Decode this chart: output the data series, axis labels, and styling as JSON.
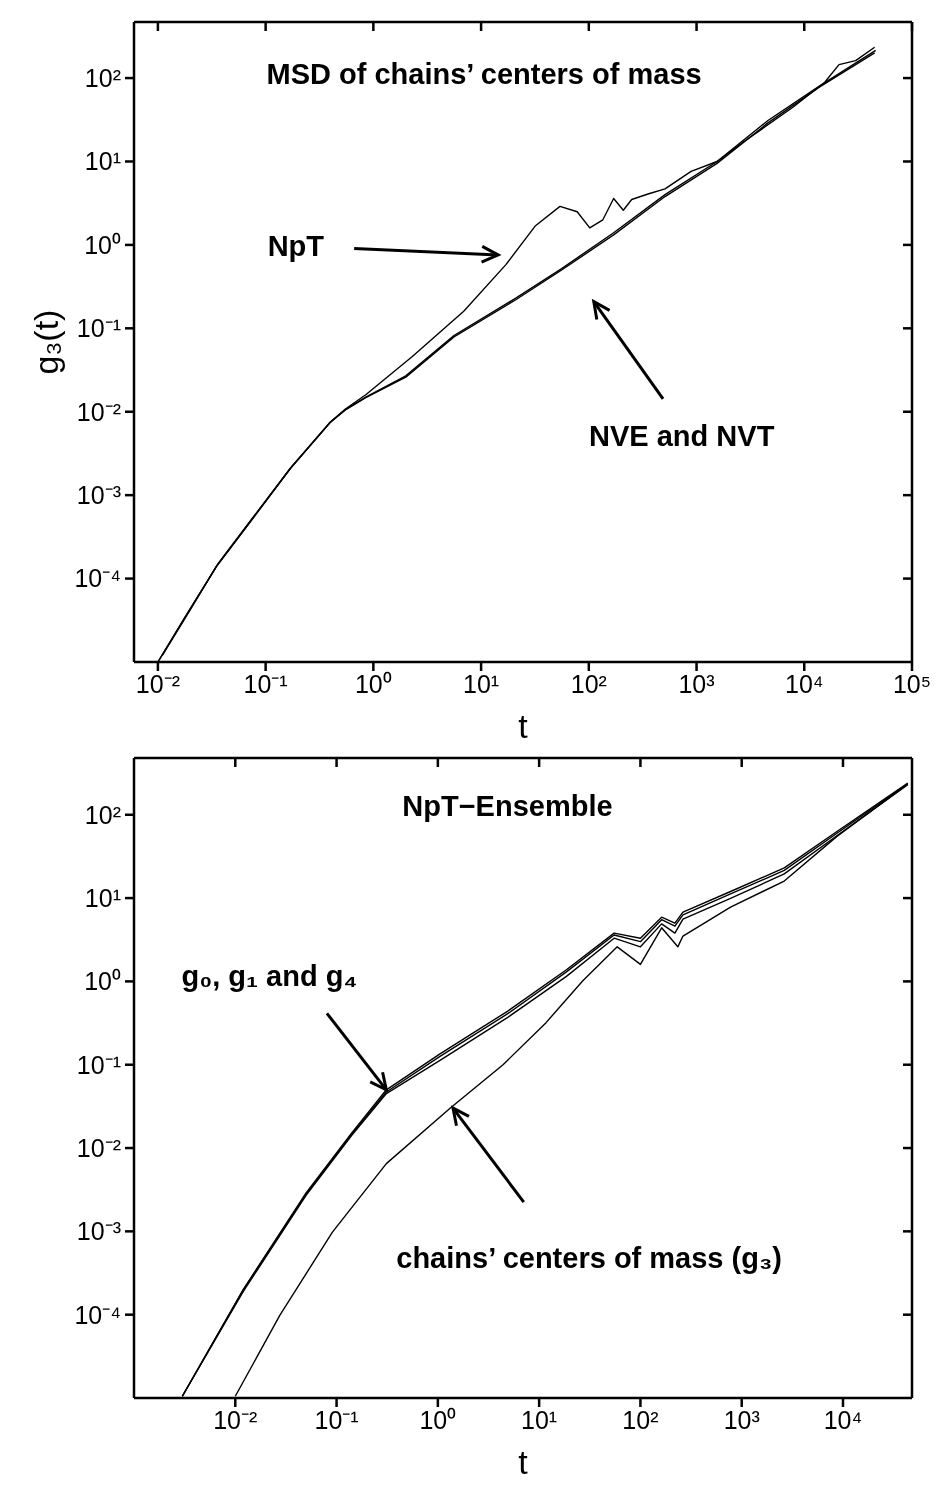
{
  "chart_data": [
    {
      "type": "line",
      "title": "MSD of chains’ centers of mass",
      "xlabel": "t",
      "ylabel": "g₃(t)",
      "log": "xy",
      "annotations": [
        "NpT",
        "NVE and NVT"
      ],
      "xlim": [
        0.006,
        100000
      ],
      "ylim": [
        1e-05,
        470
      ],
      "xticks": [
        {
          "value": 0.01,
          "label": "10⁻²"
        },
        {
          "value": 0.1,
          "label": "10⁻¹"
        },
        {
          "value": 1,
          "label": "10⁰"
        },
        {
          "value": 10,
          "label": "10¹"
        },
        {
          "value": 100,
          "label": "10²"
        },
        {
          "value": 1000,
          "label": "10³"
        },
        {
          "value": 10000,
          "label": "10⁴"
        },
        {
          "value": 100000,
          "label": "10⁵"
        }
      ],
      "yticks": [
        {
          "value": 0.0001,
          "label": "10⁻⁴"
        },
        {
          "value": 0.001,
          "label": "10⁻³"
        },
        {
          "value": 0.01,
          "label": "10⁻²"
        },
        {
          "value": 0.1,
          "label": "10⁻¹"
        },
        {
          "value": 1,
          "label": "10⁰"
        },
        {
          "value": 10,
          "label": "10¹"
        },
        {
          "value": 100,
          "label": "10²"
        }
      ],
      "series": [
        {
          "color": "#000000",
          "x": [
            0.01,
            0.018,
            0.035,
            0.072,
            0.17,
            0.4,
            0.55,
            0.85,
            2,
            5.6,
            21,
            56,
            170,
            510,
            1550,
            4600,
            13800,
            45000
          ],
          "values": [
            1e-05,
            3.5e-05,
            0.00014,
            0.00048,
            0.0021,
            0.0075,
            0.0105,
            0.0148,
            0.026,
            0.079,
            0.22,
            0.5,
            1.32,
            3.8,
            9.5,
            29,
            78,
            200
          ]
        },
        {
          "color": "#000000",
          "x": [
            0.011,
            0.019,
            0.036,
            0.072,
            0.17,
            0.4,
            0.55,
            0.85,
            2,
            5.6,
            21,
            56,
            170,
            510,
            1550,
            4600,
            13800,
            46000
          ],
          "values": [
            1.2e-05,
            3.8e-05,
            0.00015,
            0.00049,
            0.0021,
            0.0076,
            0.0106,
            0.015,
            0.027,
            0.082,
            0.23,
            0.52,
            1.4,
            4.0,
            10,
            31,
            80,
            215
          ]
        },
        {
          "color": "#000000",
          "x": [
            0.01,
            0.018,
            0.035,
            0.072,
            0.17,
            0.4,
            0.55,
            0.85,
            2.3,
            6.9,
            17,
            32,
            54,
            78,
            102,
            135,
            170,
            209,
            250,
            360,
            510,
            890,
            1550,
            2700,
            7900,
            15500,
            21000,
            30000,
            45000
          ],
          "values": [
            1e-05,
            3.5e-05,
            0.00014,
            0.00048,
            0.0021,
            0.0075,
            0.0108,
            0.016,
            0.046,
            0.16,
            0.58,
            1.7,
            2.9,
            2.5,
            1.6,
            2.0,
            3.6,
            2.6,
            3.5,
            4.1,
            4.7,
            7.6,
            10,
            17,
            45,
            89,
            145,
            162,
            234
          ]
        }
      ]
    },
    {
      "type": "line",
      "title": "NpT−Ensemble",
      "xlabel": "t",
      "log": "xy",
      "annotations": [
        {
          "text": "g₀, g₁ and g₄",
          "x": 0.31,
          "y": 0.05
        },
        "chains’ centers of mass (g₃)"
      ],
      "xlim": [
        0.001,
        48000
      ],
      "ylim": [
        1e-05,
        480
      ],
      "xticks": [
        {
          "value": 0.01,
          "label": "10⁻²"
        },
        {
          "value": 0.1,
          "label": "10⁻¹"
        },
        {
          "value": 1,
          "label": "10⁰"
        },
        {
          "value": 10,
          "label": "10¹"
        },
        {
          "value": 100,
          "label": "10²"
        },
        {
          "value": 1000,
          "label": "10³"
        },
        {
          "value": 10000,
          "label": "10⁴"
        }
      ],
      "yticks": [
        {
          "value": 0.0001,
          "label": "10⁻⁴"
        },
        {
          "value": 0.001,
          "label": "10⁻³"
        },
        {
          "value": 0.01,
          "label": "10⁻²"
        },
        {
          "value": 0.1,
          "label": "10⁻¹"
        },
        {
          "value": 1,
          "label": "10⁰"
        },
        {
          "value": 10,
          "label": "10¹"
        },
        {
          "value": 100,
          "label": "10²"
        }
      ],
      "series": [
        {
          "color": "#000000",
          "x": [
            0.003,
            0.012,
            0.05,
            0.14,
            0.31,
            1.05,
            4.9,
            18.6,
            55,
            100,
            162,
            219,
            263,
            776,
            2630,
            8710,
            43600
          ],
          "values": [
            1.05e-05,
            0.0002,
            0.0029,
            0.015,
            0.05,
            0.135,
            0.44,
            1.38,
            3.8,
            3.3,
            5.9,
            5.0,
            6.8,
            12,
            23,
            63,
            240
          ]
        },
        {
          "color": "#000000",
          "x": [
            0.003,
            0.012,
            0.05,
            0.14,
            0.31,
            1.05,
            4.9,
            18.6,
            55,
            100,
            162,
            219,
            263,
            776,
            2630,
            8710,
            43600
          ],
          "values": [
            1.05e-05,
            0.0002,
            0.0028,
            0.0145,
            0.047,
            0.126,
            0.41,
            1.3,
            3.6,
            3.0,
            5.5,
            4.6,
            6.3,
            11.2,
            21.5,
            60,
            235
          ]
        },
        {
          "color": "#000000",
          "x": [
            0.003,
            0.012,
            0.05,
            0.14,
            0.31,
            1.05,
            4.9,
            18.6,
            55,
            100,
            162,
            219,
            263,
            776,
            2630,
            8710,
            43600
          ],
          "values": [
            1.05e-05,
            0.00019,
            0.0027,
            0.014,
            0.045,
            0.113,
            0.37,
            1.15,
            3.3,
            2.6,
            4.9,
            3.8,
            5.6,
            9.9,
            19.5,
            56,
            230
          ]
        },
        {
          "color": "#000000",
          "x": [
            0.01,
            0.0275,
            0.091,
            0.31,
            1.32,
            4.4,
            11.7,
            27,
            59,
            100,
            162,
            234,
            263,
            776,
            2630,
            8710,
            43600
          ],
          "values": [
            1.05e-05,
            9.8e-05,
            0.00098,
            0.0065,
            0.03,
            0.1,
            0.32,
            1.02,
            2.6,
            1.6,
            4.4,
            2.6,
            3.5,
            7.8,
            16,
            55,
            234
          ]
        }
      ]
    }
  ]
}
